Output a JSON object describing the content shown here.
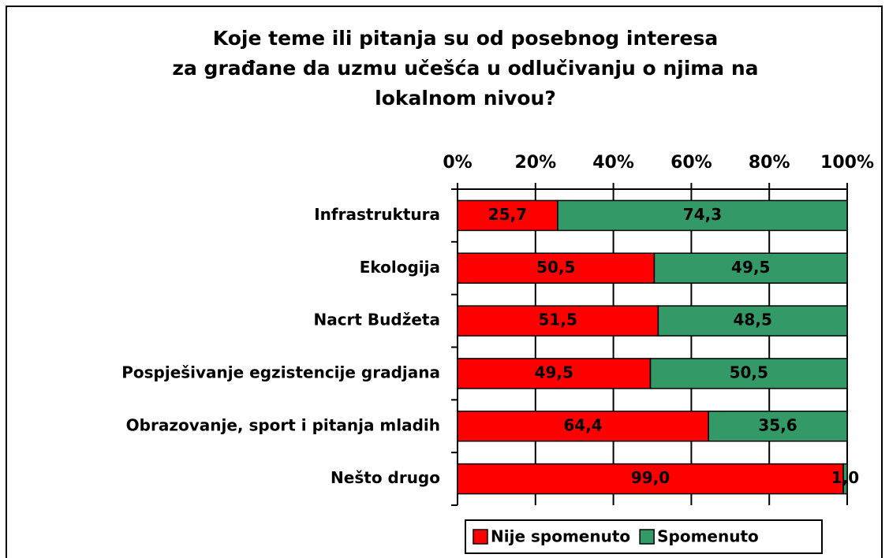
{
  "chart_data": {
    "type": "stacked-bar-horizontal",
    "title": [
      "Koje teme ili pitanja su od posebnog interesa",
      "za građane da uzmu učešća u odlučivanju o njima na",
      "lokalnom nivou?"
    ],
    "categories": [
      "Infrastruktura",
      "Ekologija",
      "Nacrt Budžeta",
      "Pospješivanje egzistencije gradjana",
      "Obrazovanje, sport i pitanja mladih",
      "Nešto drugo"
    ],
    "series": [
      {
        "name": "Nije spomenuto",
        "color": "#ff0000",
        "values": [
          25.7,
          50.5,
          51.5,
          49.5,
          64.4,
          99.0
        ],
        "value_labels": [
          "25,7",
          "50,5",
          "51,5",
          "49,5",
          "64,4",
          "99,0"
        ]
      },
      {
        "name": "Spomenuto",
        "color": "#339966",
        "values": [
          74.3,
          49.5,
          48.5,
          50.5,
          35.6,
          1.0
        ],
        "value_labels": [
          "74,3",
          "49,5",
          "48,5",
          "50,5",
          "35,6",
          "1,0"
        ]
      }
    ],
    "xlim": [
      0,
      100
    ],
    "xticks": [
      {
        "value": 0,
        "label": "0%"
      },
      {
        "value": 20,
        "label": "20%"
      },
      {
        "value": 40,
        "label": "40%"
      },
      {
        "value": 60,
        "label": "60%"
      },
      {
        "value": 80,
        "label": "80%"
      },
      {
        "value": 100,
        "label": "100%"
      }
    ],
    "grid": true,
    "legend": "bottom"
  }
}
